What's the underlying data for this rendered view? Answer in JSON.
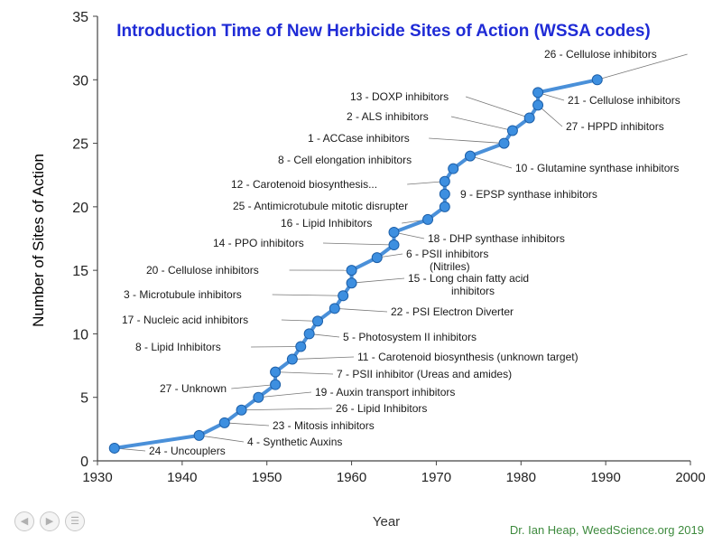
{
  "chart_data": {
    "type": "line",
    "title": "Introduction Time of New Herbicide Sites of Action (WSSA codes)",
    "xlabel": "Year",
    "ylabel": "Number of Sites of Action",
    "xlim": [
      1930,
      2000
    ],
    "ylim": [
      0,
      35
    ],
    "xticks": [
      1930,
      1940,
      1950,
      1960,
      1970,
      1980,
      1990,
      2000
    ],
    "yticks": [
      0,
      5,
      10,
      15,
      20,
      25,
      30,
      35
    ],
    "grid": false,
    "legend": "none",
    "line_color": "#4a90d9",
    "title_color": "#1f2bd6",
    "x": [
      1932,
      1942,
      1945,
      1947,
      1949,
      1951,
      1951,
      1953,
      1954,
      1955,
      1956,
      1958,
      1959,
      1960,
      1960,
      1963,
      1965,
      1965,
      1969,
      1971,
      1971,
      1971,
      1972,
      1974,
      1978,
      1979,
      1981,
      1982,
      1982,
      1989
    ],
    "y": [
      1,
      2,
      3,
      4,
      5,
      6,
      7,
      8,
      9,
      10,
      11,
      12,
      13,
      14,
      15,
      16,
      17,
      18,
      19,
      20,
      21,
      22,
      23,
      24,
      25,
      26,
      27,
      28,
      29,
      30
    ],
    "annotations": [
      {
        "text": "26 -  Cellulose inhibitors",
        "x": 1989,
        "y": 30
      },
      {
        "text": "21 -  Cellulose inhibitors",
        "x": 1982,
        "y": 29
      },
      {
        "text": "27 -  HPPD inhibitors",
        "x": 1982,
        "y": 28
      },
      {
        "text": "13 -  DOXP inhibitors",
        "x": 1981,
        "y": 27
      },
      {
        "text": "2 -  ALS inhibitors",
        "x": 1979,
        "y": 26
      },
      {
        "text": "1 -  ACCase inhibitors",
        "x": 1978,
        "y": 25
      },
      {
        "text": "10 -  Glutamine synthase inhibitors",
        "x": 1974,
        "y": 24
      },
      {
        "text": "8 -  Cell elongation inhibitors",
        "x": 1972,
        "y": 23
      },
      {
        "text": "12 -  Carotenoid biosynthesis...",
        "x": 1971,
        "y": 22
      },
      {
        "text": "9 -  EPSP synthase inhibitors",
        "x": 1971,
        "y": 21
      },
      {
        "text": "25 -  Antimicrotubule mitotic disrupter",
        "x": 1971,
        "y": 20
      },
      {
        "text": "16 -  Lipid Inhibitors",
        "x": 1969,
        "y": 19
      },
      {
        "text": "18 -  DHP synthase inhibitors",
        "x": 1965,
        "y": 18
      },
      {
        "text": "14 -  PPO inhibitors",
        "x": 1965,
        "y": 17
      },
      {
        "text": "6 -  PSII inhibitors (Nitriles)",
        "x": 1963,
        "y": 16
      },
      {
        "text": "20 -  Cellulose inhibitors",
        "x": 1960,
        "y": 15
      },
      {
        "text": "15 -  Long chain fatty acid inhibitors",
        "x": 1960,
        "y": 14
      },
      {
        "text": "3 -  Microtubule inhibitors",
        "x": 1959,
        "y": 13
      },
      {
        "text": "22 -  PSI Electron Diverter",
        "x": 1958,
        "y": 12
      },
      {
        "text": "17 -  Nucleic acid inhibitors",
        "x": 1956,
        "y": 11
      },
      {
        "text": "5 -  Photosystem II inhibitors",
        "x": 1955,
        "y": 10
      },
      {
        "text": "8 -  Lipid Inhibitors",
        "x": 1954,
        "y": 9
      },
      {
        "text": "11 -  Carotenoid biosynthesis (unknown target)",
        "x": 1953,
        "y": 8
      },
      {
        "text": "7 -  PSII inhibitor (Ureas and amides)",
        "x": 1951,
        "y": 7
      },
      {
        "text": "27 -  Unknown",
        "x": 1951,
        "y": 6
      },
      {
        "text": "19 -  Auxin transport inhibitors",
        "x": 1949,
        "y": 5
      },
      {
        "text": "26 -  Lipid Inhibitors",
        "x": 1947,
        "y": 4
      },
      {
        "text": "23 -  Mitosis inhibitors",
        "x": 1945,
        "y": 3
      },
      {
        "text": "4 -  Synthetic Auxins",
        "x": 1942,
        "y": 2
      },
      {
        "text": "24 -  Uncouplers",
        "x": 1932,
        "y": 1
      }
    ]
  },
  "footer": {
    "credit": "Dr. Ian Heap, WeedScience.org  2019",
    "credit_color": "#3d8a3d",
    "nav_icons": [
      "prev-icon",
      "next-icon",
      "menu-icon"
    ]
  }
}
